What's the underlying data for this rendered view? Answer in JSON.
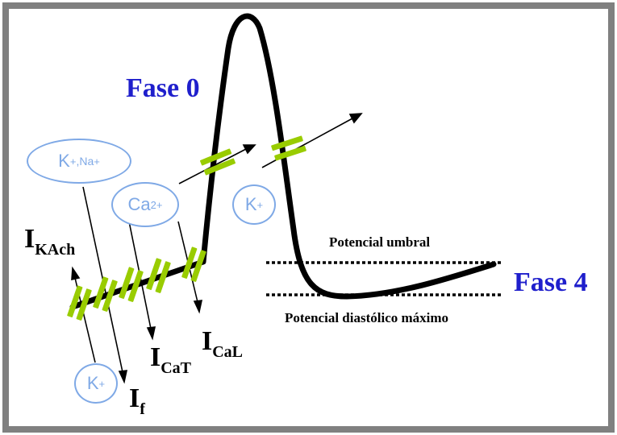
{
  "labels": {
    "fase0": "Fase 0",
    "fase4": "Fase 4",
    "umbral": "Potencial umbral",
    "diastolico": "Potencial diastólico máximo"
  },
  "currents": {
    "ikach_main": "I",
    "ikach_sub": "KAch",
    "if_main": "I",
    "if_sub": "f",
    "icat_main": "I",
    "icat_sub": "CaT",
    "ical_main": "I",
    "ical_sub": "CaL"
  },
  "ions": {
    "k_na": {
      "k": "K",
      "k_sup": "+",
      "sep": ",",
      "na": "Na",
      "na_sup": "+"
    },
    "ca": {
      "main": "Ca",
      "sup": "2+"
    },
    "k_right": {
      "main": "K",
      "sup": "+"
    },
    "k_bottom": {
      "main": "K",
      "sup": "+"
    }
  },
  "colors": {
    "fase_text": "#1f1fcc",
    "ion_outline": "#7fa9e6",
    "channel_green": "#99cc00",
    "frame_gray": "#808080",
    "curve": "#000000"
  }
}
